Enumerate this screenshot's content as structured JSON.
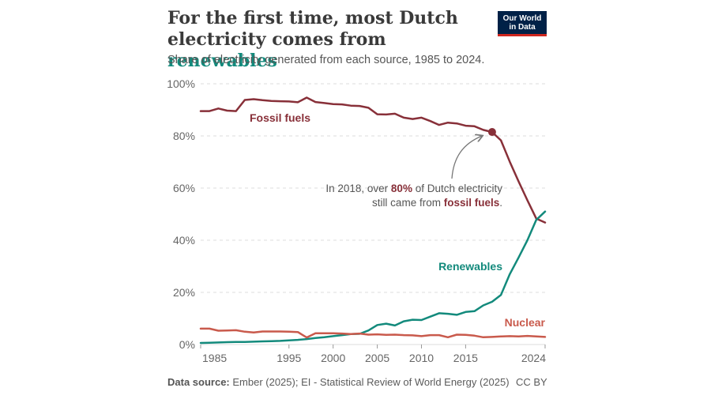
{
  "header": {
    "title_line1": "For the first time, most Dutch",
    "title_line2_prefix": "electricity comes from ",
    "title_accent": "renewables",
    "subtitle": "Share of electricity generated from each source, 1985 to 2024.",
    "logo_line1": "Our World",
    "logo_line2": "in Data"
  },
  "annotation": {
    "line1_prefix": "In 2018, over ",
    "line1_highlight": "80%",
    "line1_suffix": " of Dutch electricity",
    "line2_prefix": "still came from ",
    "line2_highlight": "fossil fuels",
    "line2_suffix": "."
  },
  "footer": {
    "source_label": "Data source:",
    "source_text": " Ember (2025); EI - Statistical Review of World Energy (2025)",
    "license": "CC BY"
  },
  "colors": {
    "fossil": "#883039",
    "renewables": "#138a7c",
    "nuclear": "#c95a4c",
    "grid": "#dddddd"
  },
  "chart_data": {
    "type": "line",
    "title": "For the first time, most Dutch electricity comes from renewables",
    "subtitle": "Share of electricity generated from each source, 1985 to 2024.",
    "xlabel": "",
    "ylabel": "",
    "xlim": [
      1985,
      2024
    ],
    "ylim": [
      0,
      100
    ],
    "y_ticks": [
      0,
      20,
      40,
      60,
      80,
      100
    ],
    "y_tick_labels": [
      "0%",
      "20%",
      "40%",
      "60%",
      "80%",
      "100%"
    ],
    "x_ticks": [
      1985,
      1995,
      2000,
      2005,
      2010,
      2015,
      2024
    ],
    "x_tick_labels": [
      "1985",
      "1995",
      "2000",
      "2005",
      "2010",
      "2015",
      "2024"
    ],
    "grid": true,
    "highlight_point": {
      "series": "Fossil fuels",
      "x": 2018,
      "y": 81.5
    },
    "series": [
      {
        "name": "Fossil fuels",
        "label": "Fossil fuels",
        "x": [
          1985,
          1986,
          1987,
          1988,
          1989,
          1990,
          1991,
          1992,
          1993,
          1994,
          1995,
          1996,
          1997,
          1998,
          1999,
          2000,
          2001,
          2002,
          2003,
          2004,
          2005,
          2006,
          2007,
          2008,
          2009,
          2010,
          2011,
          2012,
          2013,
          2014,
          2015,
          2016,
          2017,
          2018,
          2019,
          2020,
          2021,
          2022,
          2023,
          2024
        ],
        "values": [
          89.5,
          89.5,
          90.5,
          89.7,
          89.5,
          93.8,
          94.1,
          93.7,
          93.4,
          93.3,
          93.2,
          92.9,
          94.7,
          93.0,
          92.6,
          92.2,
          92.1,
          91.6,
          91.5,
          90.8,
          88.3,
          88.2,
          88.5,
          87.0,
          86.5,
          87.0,
          85.7,
          84.2,
          85.1,
          84.8,
          83.9,
          83.7,
          82.3,
          81.5,
          78.3,
          70.1,
          62.5,
          55.3,
          48.3,
          46.8
        ]
      },
      {
        "name": "Renewables",
        "label": "Renewables",
        "x": [
          1985,
          1986,
          1987,
          1988,
          1989,
          1990,
          1991,
          1992,
          1993,
          1994,
          1995,
          1996,
          1997,
          1998,
          1999,
          2000,
          2001,
          2002,
          2003,
          2004,
          2005,
          2006,
          2007,
          2008,
          2009,
          2010,
          2011,
          2012,
          2013,
          2014,
          2015,
          2016,
          2017,
          2018,
          2019,
          2020,
          2021,
          2022,
          2023,
          2024
        ],
        "values": [
          0.6,
          0.7,
          0.8,
          0.9,
          1.0,
          1.0,
          1.1,
          1.2,
          1.3,
          1.4,
          1.6,
          1.8,
          2.1,
          2.5,
          2.8,
          3.2,
          3.6,
          4.0,
          4.1,
          5.4,
          7.5,
          8.0,
          7.3,
          8.9,
          9.5,
          9.4,
          10.7,
          12.0,
          11.8,
          11.4,
          12.5,
          12.8,
          15.0,
          16.4,
          19.0,
          27.0,
          33.4,
          40.0,
          47.8,
          51.0
        ]
      },
      {
        "name": "Nuclear",
        "label": "Nuclear",
        "x": [
          1985,
          1986,
          1987,
          1988,
          1989,
          1990,
          1991,
          1992,
          1993,
          1994,
          1995,
          1996,
          1997,
          1998,
          1999,
          2000,
          2001,
          2002,
          2003,
          2004,
          2005,
          2006,
          2007,
          2008,
          2009,
          2010,
          2011,
          2012,
          2013,
          2014,
          2015,
          2016,
          2017,
          2018,
          2019,
          2020,
          2021,
          2022,
          2023,
          2024
        ],
        "values": [
          6.1,
          6.1,
          5.3,
          5.4,
          5.5,
          4.9,
          4.6,
          5.0,
          5.0,
          5.0,
          4.9,
          4.8,
          2.7,
          4.3,
          4.3,
          4.3,
          4.2,
          4.0,
          4.2,
          3.8,
          3.9,
          3.7,
          3.8,
          3.6,
          3.5,
          3.2,
          3.6,
          3.6,
          2.8,
          3.8,
          3.7,
          3.4,
          2.8,
          2.9,
          3.1,
          3.2,
          3.1,
          3.3,
          3.1,
          2.9
        ]
      }
    ]
  }
}
